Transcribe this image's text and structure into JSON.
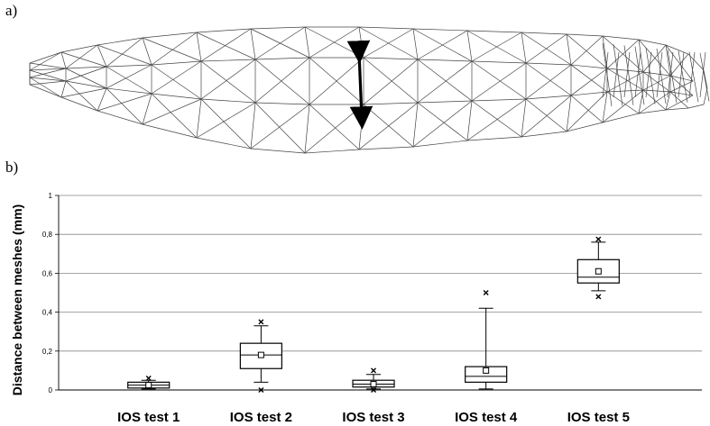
{
  "panels": {
    "a": "a)",
    "b": "b)"
  },
  "chart_data": {
    "type": "box",
    "ylabel": "Distance between meshes (mm)",
    "xlabel": "",
    "ylim": [
      0,
      1
    ],
    "yticks": [
      "0",
      "0,2",
      "0,4",
      "0,6",
      "0,8",
      "1"
    ],
    "ytick_values": [
      0,
      0.2,
      0.4,
      0.6,
      0.8,
      1
    ],
    "grid": true,
    "categories": [
      "IOS test 1",
      "IOS test 2",
      "IOS test 3",
      "IOS test 4",
      "IOS test 5"
    ],
    "boxes": [
      {
        "whisker_low": 0.005,
        "q1": 0.01,
        "median": 0.025,
        "q3": 0.04,
        "whisker_high": 0.05,
        "mean": 0.025,
        "outliers": [
          0.06
        ]
      },
      {
        "whisker_low": 0.04,
        "q1": 0.11,
        "median": 0.18,
        "q3": 0.24,
        "whisker_high": 0.33,
        "mean": 0.18,
        "outliers": [
          0.0,
          0.35
        ]
      },
      {
        "whisker_low": 0.005,
        "q1": 0.015,
        "median": 0.03,
        "q3": 0.05,
        "whisker_high": 0.08,
        "mean": 0.03,
        "outliers": [
          0.0,
          0.1
        ]
      },
      {
        "whisker_low": 0.005,
        "q1": 0.04,
        "median": 0.07,
        "q3": 0.12,
        "whisker_high": 0.42,
        "mean": 0.1,
        "outliers": [
          0.5
        ]
      },
      {
        "whisker_low": 0.51,
        "q1": 0.55,
        "median": 0.58,
        "q3": 0.67,
        "whisker_high": 0.76,
        "mean": 0.61,
        "outliers": [
          0.48,
          0.775
        ]
      }
    ]
  }
}
